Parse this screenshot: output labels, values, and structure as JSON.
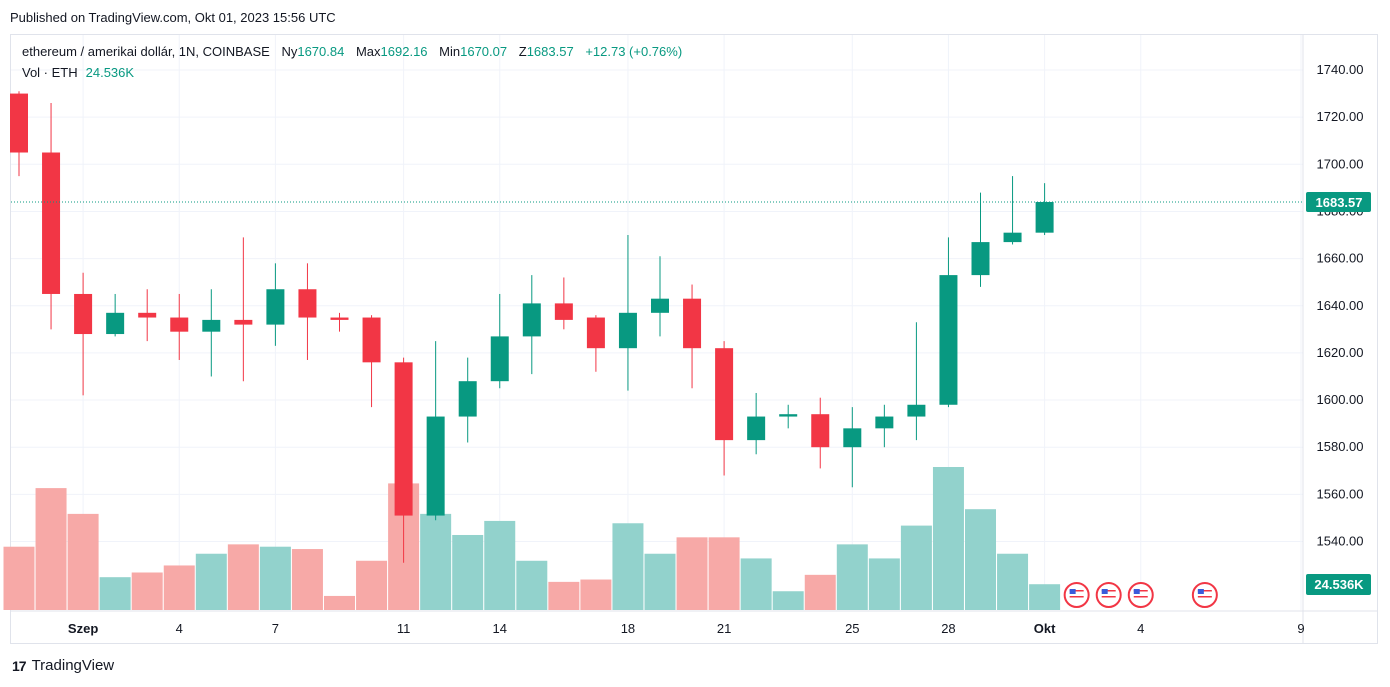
{
  "published": "Published on TradingView.com, Okt 01, 2023 15:56 UTC",
  "header": {
    "symbol": "ethereum / amerikai dollár, 1N, COINBASE",
    "open_label": "Ny",
    "open_value": "1670.84",
    "high_label": "Max",
    "high_value": "1692.16",
    "low_label": "Min",
    "low_value": "1670.07",
    "close_label": "Z",
    "close_value": "1683.57",
    "change": "+12.73 (+0.76%)"
  },
  "volume_legend": {
    "label": "Vol · ETH",
    "value": "24.536K"
  },
  "brand": "TradingView",
  "colors": {
    "up": "#089981",
    "down": "#f23645",
    "vol_up": "#92d2cc",
    "vol_down": "#f7a9a7",
    "grid": "#f0f3fa",
    "text": "#131722"
  },
  "chart_data": {
    "type": "candlestick",
    "price_ylim": [
      1528,
      1746
    ],
    "y_ticks": [
      "1540.00",
      "1560.00",
      "1580.00",
      "1600.00",
      "1620.00",
      "1640.00",
      "1660.00",
      "1680.00",
      "1700.00",
      "1720.00",
      "1740.00"
    ],
    "x_tick_labels": [
      {
        "label": "Szep",
        "index": 2
      },
      {
        "label": "4",
        "index": 5
      },
      {
        "label": "7",
        "index": 8
      },
      {
        "label": "11",
        "index": 12
      },
      {
        "label": "14",
        "index": 15
      },
      {
        "label": "18",
        "index": 19
      },
      {
        "label": "21",
        "index": 22
      },
      {
        "label": "25",
        "index": 26
      },
      {
        "label": "28",
        "index": 29
      },
      {
        "label": "Okt",
        "index": 32
      },
      {
        "label": "4",
        "index": 35
      },
      {
        "label": "9",
        "index": 40
      }
    ],
    "last_price_label": "1683.57",
    "last_volume_label": "24.536K",
    "candles": [
      {
        "o": 1730,
        "h": 1731,
        "l": 1695,
        "c": 1705,
        "v": 27
      },
      {
        "o": 1705,
        "h": 1726,
        "l": 1630,
        "c": 1645,
        "v": 52
      },
      {
        "o": 1645,
        "h": 1654,
        "l": 1602,
        "c": 1628,
        "v": 41
      },
      {
        "o": 1628,
        "h": 1645,
        "l": 1627,
        "c": 1637,
        "v": 14
      },
      {
        "o": 1637,
        "h": 1647,
        "l": 1625,
        "c": 1635,
        "v": 16
      },
      {
        "o": 1635,
        "h": 1645,
        "l": 1617,
        "c": 1629,
        "v": 19
      },
      {
        "o": 1629,
        "h": 1647,
        "l": 1610,
        "c": 1634,
        "v": 24
      },
      {
        "o": 1634,
        "h": 1669,
        "l": 1608,
        "c": 1632,
        "v": 28
      },
      {
        "o": 1632,
        "h": 1658,
        "l": 1623,
        "c": 1647,
        "v": 27
      },
      {
        "o": 1647,
        "h": 1658,
        "l": 1617,
        "c": 1635,
        "v": 26
      },
      {
        "o": 1635,
        "h": 1637,
        "l": 1629,
        "c": 1634,
        "v": 6
      },
      {
        "o": 1635,
        "h": 1636,
        "l": 1597,
        "c": 1616,
        "v": 21
      },
      {
        "o": 1616,
        "h": 1618,
        "l": 1531,
        "c": 1551,
        "v": 54
      },
      {
        "o": 1551,
        "h": 1625,
        "l": 1549,
        "c": 1593,
        "v": 41
      },
      {
        "o": 1593,
        "h": 1618,
        "l": 1582,
        "c": 1608,
        "v": 32
      },
      {
        "o": 1608,
        "h": 1645,
        "l": 1605,
        "c": 1627,
        "v": 38
      },
      {
        "o": 1627,
        "h": 1653,
        "l": 1611,
        "c": 1641,
        "v": 21
      },
      {
        "o": 1641,
        "h": 1652,
        "l": 1630,
        "c": 1634,
        "v": 12
      },
      {
        "o": 1635,
        "h": 1636,
        "l": 1612,
        "c": 1622,
        "v": 13
      },
      {
        "o": 1622,
        "h": 1670,
        "l": 1604,
        "c": 1637,
        "v": 37
      },
      {
        "o": 1637,
        "h": 1661,
        "l": 1627,
        "c": 1643,
        "v": 24
      },
      {
        "o": 1643,
        "h": 1649,
        "l": 1605,
        "c": 1622,
        "v": 31
      },
      {
        "o": 1622,
        "h": 1625,
        "l": 1568,
        "c": 1583,
        "v": 31
      },
      {
        "o": 1583,
        "h": 1603,
        "l": 1577,
        "c": 1593,
        "v": 22
      },
      {
        "o": 1593,
        "h": 1598,
        "l": 1588,
        "c": 1594,
        "v": 8
      },
      {
        "o": 1594,
        "h": 1601,
        "l": 1571,
        "c": 1580,
        "v": 15
      },
      {
        "o": 1580,
        "h": 1597,
        "l": 1563,
        "c": 1588,
        "v": 28
      },
      {
        "o": 1588,
        "h": 1598,
        "l": 1580,
        "c": 1593,
        "v": 22
      },
      {
        "o": 1593,
        "h": 1633,
        "l": 1583,
        "c": 1598,
        "v": 36
      },
      {
        "o": 1598,
        "h": 1669,
        "l": 1597,
        "c": 1653,
        "v": 61
      },
      {
        "o": 1653,
        "h": 1688,
        "l": 1648,
        "c": 1667,
        "v": 43
      },
      {
        "o": 1667,
        "h": 1695,
        "l": 1666,
        "c": 1671,
        "v": 24
      },
      {
        "o": 1671,
        "h": 1692,
        "l": 1670,
        "c": 1684,
        "v": 11
      }
    ],
    "event_marks": [
      33,
      34,
      35,
      37
    ]
  }
}
